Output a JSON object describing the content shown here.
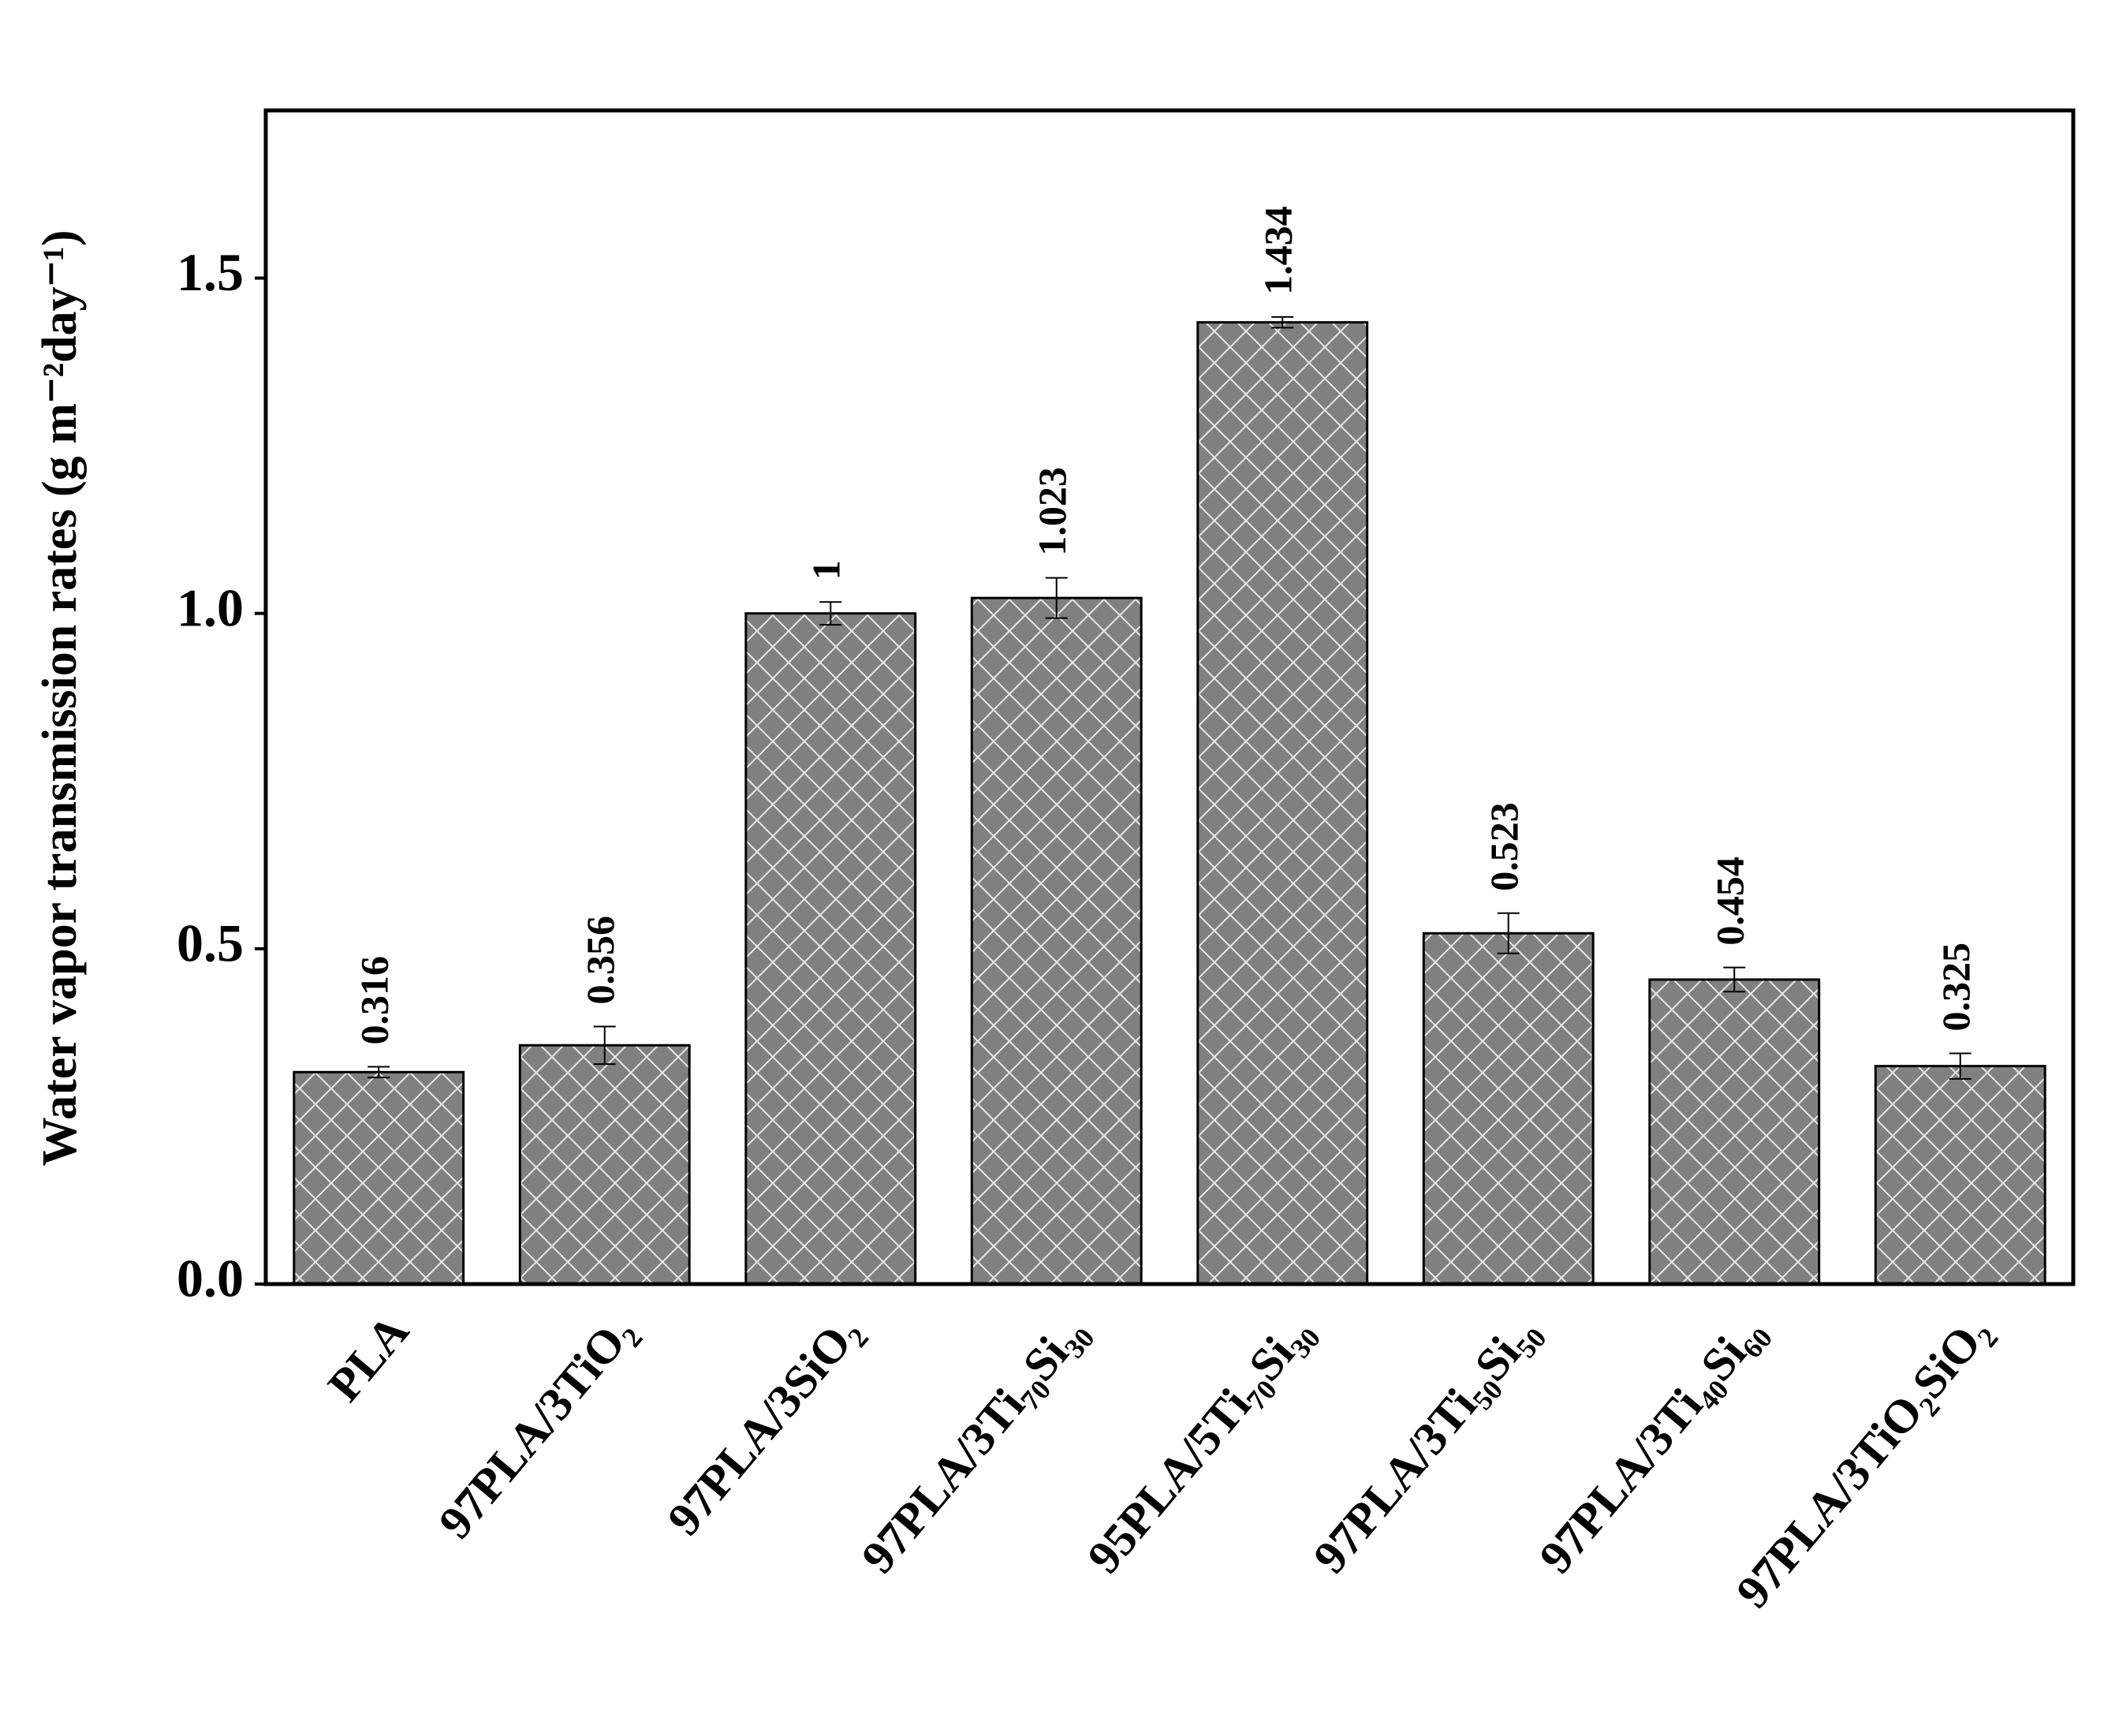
{
  "chart_data": {
    "type": "bar",
    "y_label": "Water vapor transmission rates  (g m⁻²day⁻¹)",
    "categories": [
      "PLA",
      "97PLA/3TiO₂",
      "97PLA/3SiO₂",
      "97PLA/3Ti₇₀Si₃₀",
      "95PLA/5Ti₇₀Si₃₀",
      "97PLA/3Ti₅₀Si₅₀",
      "97PLA/3Ti₄₀Si₆₀",
      "97PLA/3TiO₂SiO₂"
    ],
    "values": [
      0.316,
      0.356,
      1,
      1.023,
      1.434,
      0.523,
      0.454,
      0.325
    ],
    "errors": [
      0.008,
      0.028,
      0.017,
      0.03,
      0.008,
      0.03,
      0.018,
      0.019
    ],
    "color": "#808080",
    "ylim": [
      0,
      1.75
    ],
    "yticks": [
      {
        "value": 0,
        "label": "0.0"
      },
      0.5,
      {
        "value": 1,
        "label": "1.0"
      },
      1.5
    ]
  }
}
